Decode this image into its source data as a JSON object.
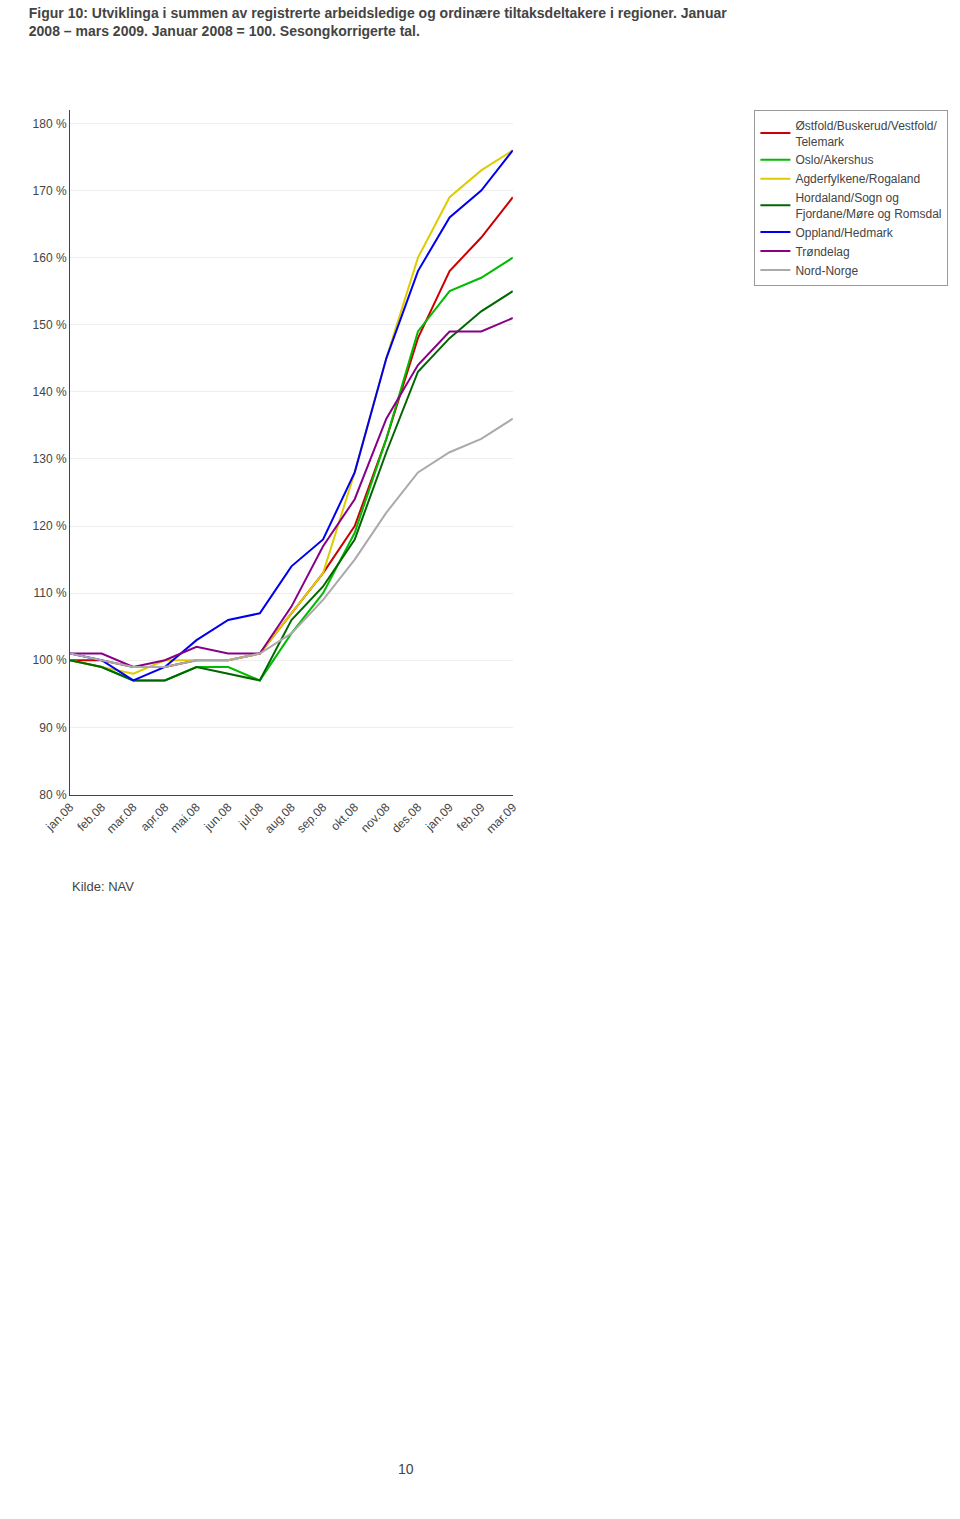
{
  "chart_data": {
    "type": "line",
    "title": "Figur 10: Utviklinga i summen av registrerte arbeidsledige og ordinære tiltaksdeltakere i regioner. Januar\n2008 – mars 2009. Januar 2008 = 100. Sesongkorrigerte tal.",
    "categories": [
      "jan.08",
      "feb.08",
      "mar.08",
      "apr.08",
      "mai.08",
      "jun.08",
      "jul.08",
      "aug.08",
      "sep.08",
      "okt.08",
      "nov.08",
      "des.08",
      "jan.09",
      "feb.09",
      "mar.09"
    ],
    "series": [
      {
        "name": "Østfold/Buskerud/Vestfold/\nTelemark",
        "color": "#CC0000",
        "values": [
          100,
          100,
          99,
          99,
          100,
          100,
          101,
          107,
          113,
          120,
          133,
          148,
          158,
          163,
          169
        ]
      },
      {
        "name": "Oslo/Akershus",
        "color": "#00BB00",
        "values": [
          100,
          99,
          97,
          97,
          99,
          99,
          97,
          104,
          110,
          119,
          133,
          149,
          155,
          157,
          160
        ]
      },
      {
        "name": "Agderfylkene/Rogaland",
        "color": "#DDCC00",
        "values": [
          100,
          99,
          98,
          100,
          100,
          100,
          101,
          107,
          113,
          128,
          145,
          160,
          169,
          173,
          176
        ]
      },
      {
        "name": "Hordaland/Sogn og\nFjordane/Møre og Romsdal",
        "color": "#006600",
        "values": [
          100,
          99,
          97,
          97,
          99,
          98,
          97,
          106,
          111,
          118,
          131,
          143,
          148,
          152,
          155
        ]
      },
      {
        "name": "Oppland/Hedmark",
        "color": "#0000EE",
        "values": [
          101,
          100,
          97,
          99,
          103,
          106,
          107,
          114,
          118,
          128,
          145,
          158,
          166,
          170,
          176
        ]
      },
      {
        "name": "Trøndelag",
        "color": "#880088",
        "values": [
          101,
          101,
          99,
          100,
          102,
          101,
          101,
          108,
          117,
          124,
          136,
          144,
          149,
          149,
          151
        ]
      },
      {
        "name": "Nord-Norge",
        "color": "#AAAAAA",
        "values": [
          101,
          100,
          99,
          99,
          100,
          100,
          101,
          104,
          109,
          115,
          122,
          128,
          131,
          133,
          136
        ]
      }
    ],
    "ylim": [
      80,
      182
    ],
    "yticks": [
      {
        "value": 80,
        "label": "80 %"
      },
      {
        "value": 90,
        "label": "90 %"
      },
      {
        "value": 100,
        "label": "100 %"
      },
      {
        "value": 110,
        "label": "110 %"
      },
      {
        "value": 120,
        "label": "120 %"
      },
      {
        "value": 130,
        "label": "130 %"
      },
      {
        "value": 140,
        "label": "140 %"
      },
      {
        "value": 150,
        "label": "150 %"
      },
      {
        "value": 160,
        "label": "160 %"
      },
      {
        "value": 170,
        "label": "170 %"
      },
      {
        "value": 180,
        "label": "180 %"
      }
    ],
    "grid": true,
    "legend": "right",
    "annotations": [
      "Kilde: NAV",
      "10"
    ]
  }
}
